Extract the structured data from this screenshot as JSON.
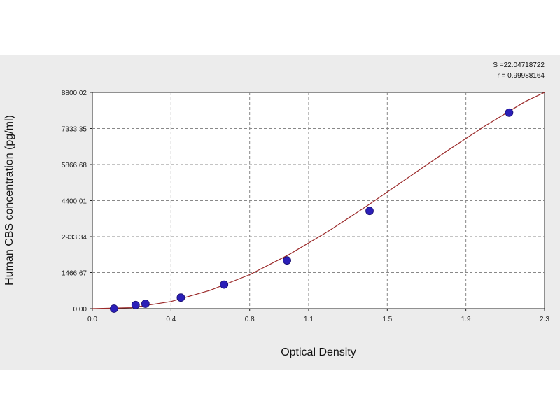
{
  "chart_data": {
    "type": "scatter",
    "title": "",
    "xlabel": "Optical Density",
    "ylabel": "Human CBS concentration (pg/ml)",
    "xlim": [
      0.0,
      2.3
    ],
    "ylim": [
      0.0,
      8800.02
    ],
    "x_ticks": [
      0.0,
      0.4,
      0.8,
      1.1,
      1.5,
      1.9,
      2.3
    ],
    "x_tick_labels": [
      "0.0",
      "0.4",
      "0.8",
      "1.1",
      "1.5",
      "1.9",
      "2.3"
    ],
    "y_ticks": [
      0.0,
      1466.67,
      2933.34,
      4400.01,
      5866.68,
      7333.35,
      8800.02
    ],
    "y_tick_labels": [
      "0.00",
      "1466.67",
      "2933.34",
      "4400.01",
      "5866.68",
      "7333.35",
      "8800.02"
    ],
    "grid": true,
    "stats": [
      "S =22.04718722",
      "r = 0.99988164"
    ],
    "point_color": "#2b1fb8",
    "curve_color": "#9b2a2a",
    "series": [
      {
        "points": [
          {
            "x": 0.11,
            "y": 0
          },
          {
            "x": 0.22,
            "y": 150
          },
          {
            "x": 0.27,
            "y": 200
          },
          {
            "x": 0.45,
            "y": 450
          },
          {
            "x": 0.67,
            "y": 980
          },
          {
            "x": 0.99,
            "y": 1960
          },
          {
            "x": 1.41,
            "y": 3980
          },
          {
            "x": 2.12,
            "y": 7980
          }
        ]
      }
    ],
    "fit_curve": [
      {
        "x": 0.0,
        "y": 0
      },
      {
        "x": 0.2,
        "y": 40
      },
      {
        "x": 0.4,
        "y": 290
      },
      {
        "x": 0.6,
        "y": 750
      },
      {
        "x": 0.8,
        "y": 1380
      },
      {
        "x": 1.0,
        "y": 2200
      },
      {
        "x": 1.2,
        "y": 3150
      },
      {
        "x": 1.4,
        "y": 4200
      },
      {
        "x": 1.6,
        "y": 5300
      },
      {
        "x": 1.8,
        "y": 6400
      },
      {
        "x": 2.0,
        "y": 7450
      },
      {
        "x": 2.2,
        "y": 8420
      },
      {
        "x": 2.3,
        "y": 8800
      }
    ]
  }
}
